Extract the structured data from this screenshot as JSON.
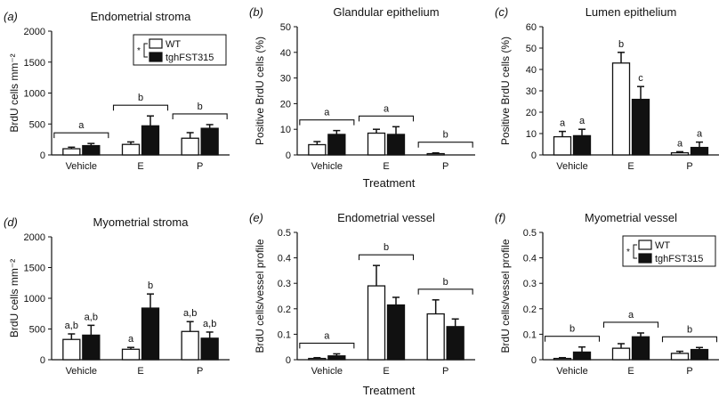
{
  "figure": {
    "treatment_label_top": "Treatment",
    "treatment_label_bottom": "Treatment"
  },
  "colors": {
    "wt": "#ffffff",
    "tgh": "#111111",
    "stroke": "#111111"
  },
  "chart_data": [
    {
      "type": "bar",
      "panel_label": "(a)",
      "title": "Endometrial stroma",
      "xlabel": "",
      "ylabel": "BrdU cells mm⁻²",
      "ylim": [
        0,
        2000
      ],
      "yticks": [
        "0",
        "500",
        "1000",
        "1500",
        "2000"
      ],
      "categories": [
        "Vehicle",
        "E",
        "P"
      ],
      "series": [
        {
          "name": "WT",
          "values": [
            100,
            170,
            270
          ],
          "errors": [
            25,
            40,
            90
          ]
        },
        {
          "name": "tghFST315",
          "values": [
            150,
            470,
            430
          ],
          "errors": [
            35,
            160,
            60
          ]
        }
      ],
      "bar_labels": [],
      "brackets": [
        {
          "group": 0,
          "label": "a"
        },
        {
          "group": 1,
          "label": "b"
        },
        {
          "group": 2,
          "label": "b"
        }
      ],
      "legend": {
        "position": "top-right",
        "marker": "*",
        "entries": [
          "WT",
          "tghFST315"
        ]
      }
    },
    {
      "type": "bar",
      "panel_label": "(b)",
      "title": "Glandular epithelium",
      "xlabel": "Treatment",
      "ylabel": "Positive BrdU cells (%)",
      "ylim": [
        0,
        50
      ],
      "yticks": [
        "0",
        "10",
        "20",
        "30",
        "40",
        "50"
      ],
      "categories": [
        "Vehicle",
        "E",
        "P"
      ],
      "series": [
        {
          "name": "WT",
          "values": [
            4,
            8.5,
            0.5
          ],
          "errors": [
            1.2,
            1.5,
            0.3
          ]
        },
        {
          "name": "tghFST315",
          "values": [
            8,
            8,
            0
          ],
          "errors": [
            1.5,
            3,
            0
          ]
        }
      ],
      "bar_labels": [],
      "brackets": [
        {
          "group": 0,
          "label": "a"
        },
        {
          "group": 1,
          "label": "a"
        },
        {
          "group": 2,
          "label": "b"
        }
      ]
    },
    {
      "type": "bar",
      "panel_label": "(c)",
      "title": "Lumen epithelium",
      "xlabel": "",
      "ylabel": "Positive BrdU cells (%)",
      "ylim": [
        0,
        60
      ],
      "yticks": [
        "0",
        "10",
        "20",
        "30",
        "40",
        "50",
        "60"
      ],
      "categories": [
        "Vehicle",
        "E",
        "P"
      ],
      "series": [
        {
          "name": "WT",
          "values": [
            8.5,
            43,
            1
          ],
          "errors": [
            2.5,
            5,
            0.5
          ]
        },
        {
          "name": "tghFST315",
          "values": [
            9,
            26,
            3.5
          ],
          "errors": [
            3,
            6,
            2.5
          ]
        }
      ],
      "bar_labels": [
        {
          "group": 0,
          "series": 0,
          "label": "a"
        },
        {
          "group": 0,
          "series": 1,
          "label": "a"
        },
        {
          "group": 1,
          "series": 0,
          "label": "b"
        },
        {
          "group": 1,
          "series": 1,
          "label": "c"
        },
        {
          "group": 2,
          "series": 0,
          "label": "a"
        },
        {
          "group": 2,
          "series": 1,
          "label": "a"
        }
      ],
      "brackets": []
    },
    {
      "type": "bar",
      "panel_label": "(d)",
      "title": "Myometrial stroma",
      "xlabel": "",
      "ylabel": "BrdU cells mm⁻²",
      "ylim": [
        0,
        2000
      ],
      "yticks": [
        "0",
        "500",
        "1000",
        "1500",
        "2000"
      ],
      "categories": [
        "Vehicle",
        "E",
        "P"
      ],
      "series": [
        {
          "name": "WT",
          "values": [
            330,
            170,
            460
          ],
          "errors": [
            90,
            30,
            160
          ]
        },
        {
          "name": "tghFST315",
          "values": [
            400,
            840,
            350
          ],
          "errors": [
            160,
            230,
            100
          ]
        }
      ],
      "bar_labels": [
        {
          "group": 0,
          "series": 0,
          "label": "a,b"
        },
        {
          "group": 0,
          "series": 1,
          "label": "a,b"
        },
        {
          "group": 1,
          "series": 0,
          "label": "a"
        },
        {
          "group": 1,
          "series": 1,
          "label": "b"
        },
        {
          "group": 2,
          "series": 0,
          "label": "a,b"
        },
        {
          "group": 2,
          "series": 1,
          "label": "a,b"
        }
      ],
      "brackets": []
    },
    {
      "type": "bar",
      "panel_label": "(e)",
      "title": "Endometrial vessel",
      "xlabel": "Treatment",
      "ylabel": "BrdU cells/vessel profile",
      "ylim": [
        0,
        0.5
      ],
      "yticks": [
        "0",
        "0.1",
        "0.2",
        "0.3",
        "0.4",
        "0.5"
      ],
      "categories": [
        "Vehicle",
        "E",
        "P"
      ],
      "series": [
        {
          "name": "WT",
          "values": [
            0.005,
            0.29,
            0.18
          ],
          "errors": [
            0.003,
            0.08,
            0.055
          ]
        },
        {
          "name": "tghFST315",
          "values": [
            0.015,
            0.215,
            0.13
          ],
          "errors": [
            0.008,
            0.03,
            0.03
          ]
        }
      ],
      "bar_labels": [],
      "brackets": [
        {
          "group": 0,
          "label": "a"
        },
        {
          "group": 1,
          "label": "b"
        },
        {
          "group": 2,
          "label": "b"
        }
      ]
    },
    {
      "type": "bar",
      "panel_label": "(f)",
      "title": "Myometrial vessel",
      "xlabel": "",
      "ylabel": "BrdU cells/vessel profile",
      "ylim": [
        0,
        0.5
      ],
      "yticks": [
        "0",
        "0.1",
        "0.2",
        "0.3",
        "0.4",
        "0.5"
      ],
      "categories": [
        "Vehicle",
        "E",
        "P"
      ],
      "series": [
        {
          "name": "WT",
          "values": [
            0.005,
            0.045,
            0.025
          ],
          "errors": [
            0.003,
            0.018,
            0.008
          ]
        },
        {
          "name": "tghFST315",
          "values": [
            0.03,
            0.09,
            0.04
          ],
          "errors": [
            0.02,
            0.015,
            0.008
          ]
        }
      ],
      "bar_labels": [],
      "brackets": [
        {
          "group": 0,
          "label": "b"
        },
        {
          "group": 1,
          "label": "a"
        },
        {
          "group": 2,
          "label": "b"
        }
      ],
      "legend": {
        "position": "top-right",
        "marker": "*",
        "entries": [
          "WT",
          "tghFST315"
        ]
      }
    }
  ]
}
